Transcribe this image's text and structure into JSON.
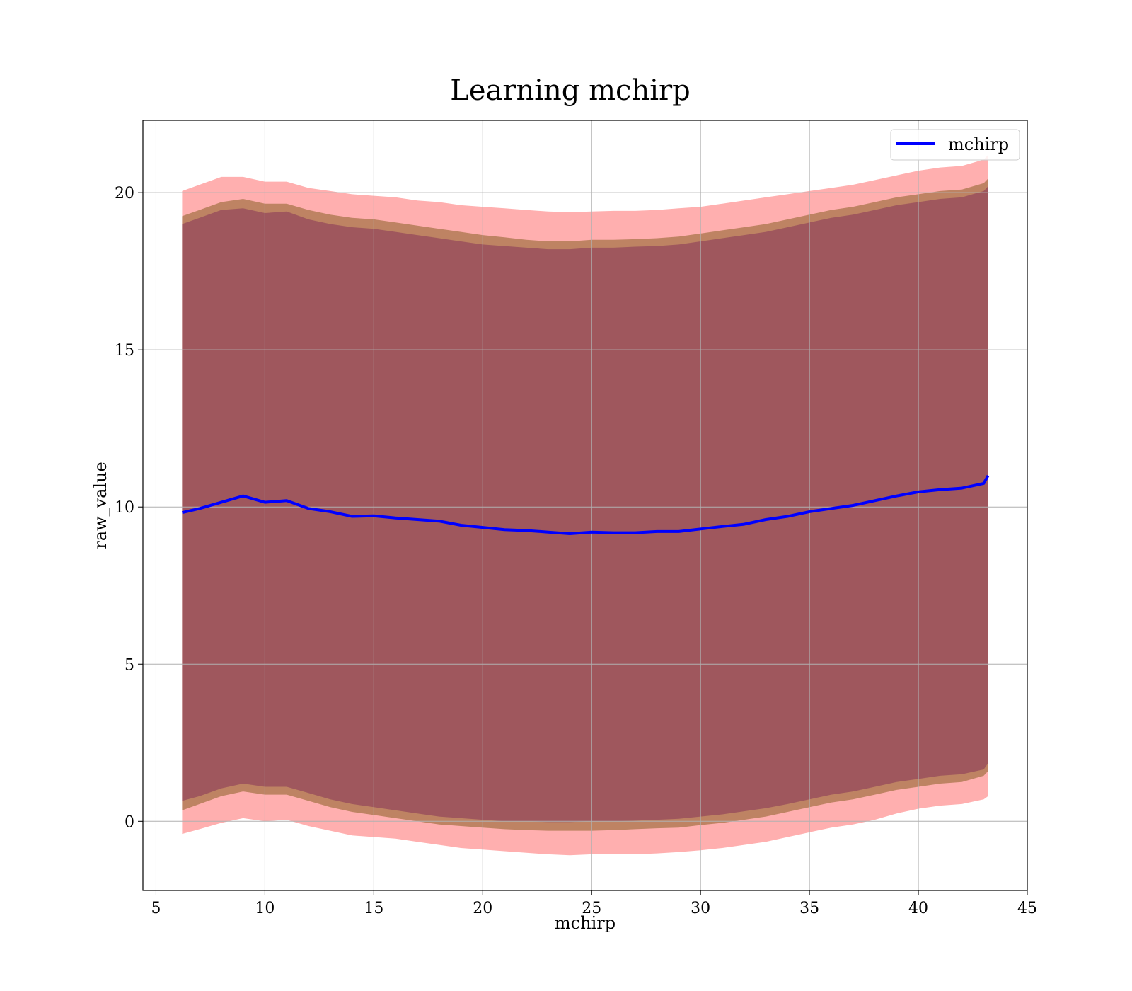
{
  "chart_data": {
    "type": "line",
    "title": "Learning mchirp",
    "xlabel": "mchirp",
    "ylabel": "raw_value",
    "xlim": [
      4.4,
      45
    ],
    "ylim": [
      -2.2,
      22.3
    ],
    "xticks": [
      "5",
      "10",
      "15",
      "20",
      "25",
      "30",
      "35",
      "40",
      "45"
    ],
    "yticks": [
      "0",
      "5",
      "10",
      "15",
      "20"
    ],
    "grid": true,
    "legend": {
      "placement": "top-right",
      "entries": [
        "mchirp"
      ]
    },
    "colors": {
      "line": "#0000ff",
      "outer_band": "#ff4d4d",
      "middle_band": "#a8744a",
      "inner_band": "#8a3a5a",
      "grid": "#b0b0b0"
    },
    "x": [
      6.2,
      7,
      8,
      9,
      10,
      11,
      12,
      13,
      14,
      15,
      16,
      17,
      18,
      19,
      20,
      21,
      22,
      23,
      24,
      25,
      26,
      27,
      28,
      29,
      30,
      31,
      32,
      33,
      34,
      35,
      36,
      37,
      38,
      39,
      40,
      41,
      42,
      43,
      43.2
    ],
    "series": [
      {
        "name": "mchirp",
        "values": [
          9.82,
          9.95,
          10.15,
          10.35,
          10.15,
          10.2,
          9.95,
          9.85,
          9.7,
          9.72,
          9.65,
          9.6,
          9.55,
          9.42,
          9.35,
          9.28,
          9.25,
          9.2,
          9.15,
          9.2,
          9.18,
          9.18,
          9.22,
          9.22,
          9.3,
          9.38,
          9.45,
          9.6,
          9.7,
          9.85,
          9.95,
          10.05,
          10.2,
          10.35,
          10.48,
          10.55,
          10.6,
          10.75,
          11.0
        ]
      }
    ],
    "bands": [
      {
        "level": "outer",
        "upper": [
          20.05,
          20.25,
          20.5,
          20.5,
          20.35,
          20.35,
          20.15,
          20.05,
          19.95,
          19.9,
          19.85,
          19.75,
          19.7,
          19.6,
          19.55,
          19.5,
          19.45,
          19.4,
          19.38,
          19.4,
          19.42,
          19.42,
          19.45,
          19.5,
          19.55,
          19.65,
          19.75,
          19.85,
          19.95,
          20.05,
          20.15,
          20.25,
          20.4,
          20.55,
          20.7,
          20.8,
          20.85,
          21.05,
          21.2
        ],
        "lower": [
          -0.4,
          -0.25,
          -0.05,
          0.1,
          0.0,
          0.05,
          -0.15,
          -0.3,
          -0.45,
          -0.5,
          -0.55,
          -0.65,
          -0.75,
          -0.85,
          -0.9,
          -0.95,
          -1.0,
          -1.05,
          -1.08,
          -1.05,
          -1.05,
          -1.05,
          -1.02,
          -0.98,
          -0.92,
          -0.85,
          -0.75,
          -0.65,
          -0.5,
          -0.35,
          -0.2,
          -0.1,
          0.05,
          0.25,
          0.4,
          0.5,
          0.55,
          0.7,
          0.8
        ]
      },
      {
        "level": "middle",
        "upper": [
          19.25,
          19.45,
          19.7,
          19.8,
          19.65,
          19.65,
          19.45,
          19.3,
          19.2,
          19.15,
          19.05,
          18.95,
          18.85,
          18.75,
          18.65,
          18.58,
          18.5,
          18.45,
          18.45,
          18.5,
          18.5,
          18.52,
          18.55,
          18.6,
          18.7,
          18.8,
          18.9,
          19.0,
          19.15,
          19.3,
          19.45,
          19.55,
          19.7,
          19.85,
          19.95,
          20.05,
          20.1,
          20.3,
          20.45
        ],
        "lower": [
          0.35,
          0.55,
          0.8,
          0.95,
          0.85,
          0.85,
          0.65,
          0.45,
          0.3,
          0.2,
          0.1,
          0.0,
          -0.1,
          -0.15,
          -0.2,
          -0.25,
          -0.28,
          -0.3,
          -0.3,
          -0.3,
          -0.28,
          -0.25,
          -0.22,
          -0.2,
          -0.12,
          -0.05,
          0.05,
          0.15,
          0.3,
          0.45,
          0.6,
          0.7,
          0.85,
          1.0,
          1.1,
          1.2,
          1.25,
          1.45,
          1.6
        ]
      },
      {
        "level": "inner",
        "upper": [
          19.0,
          19.2,
          19.45,
          19.5,
          19.35,
          19.4,
          19.15,
          19.0,
          18.9,
          18.85,
          18.75,
          18.65,
          18.55,
          18.45,
          18.35,
          18.3,
          18.25,
          18.2,
          18.2,
          18.25,
          18.25,
          18.28,
          18.3,
          18.35,
          18.45,
          18.55,
          18.65,
          18.75,
          18.9,
          19.05,
          19.2,
          19.3,
          19.45,
          19.6,
          19.7,
          19.8,
          19.85,
          20.05,
          20.2
        ],
        "lower": [
          0.65,
          0.8,
          1.05,
          1.2,
          1.1,
          1.1,
          0.9,
          0.7,
          0.55,
          0.45,
          0.35,
          0.25,
          0.15,
          0.1,
          0.05,
          0.0,
          0.0,
          -0.02,
          -0.02,
          0.0,
          0.0,
          0.02,
          0.05,
          0.08,
          0.15,
          0.22,
          0.32,
          0.42,
          0.55,
          0.7,
          0.85,
          0.95,
          1.1,
          1.25,
          1.35,
          1.45,
          1.5,
          1.65,
          1.85
        ]
      }
    ]
  }
}
